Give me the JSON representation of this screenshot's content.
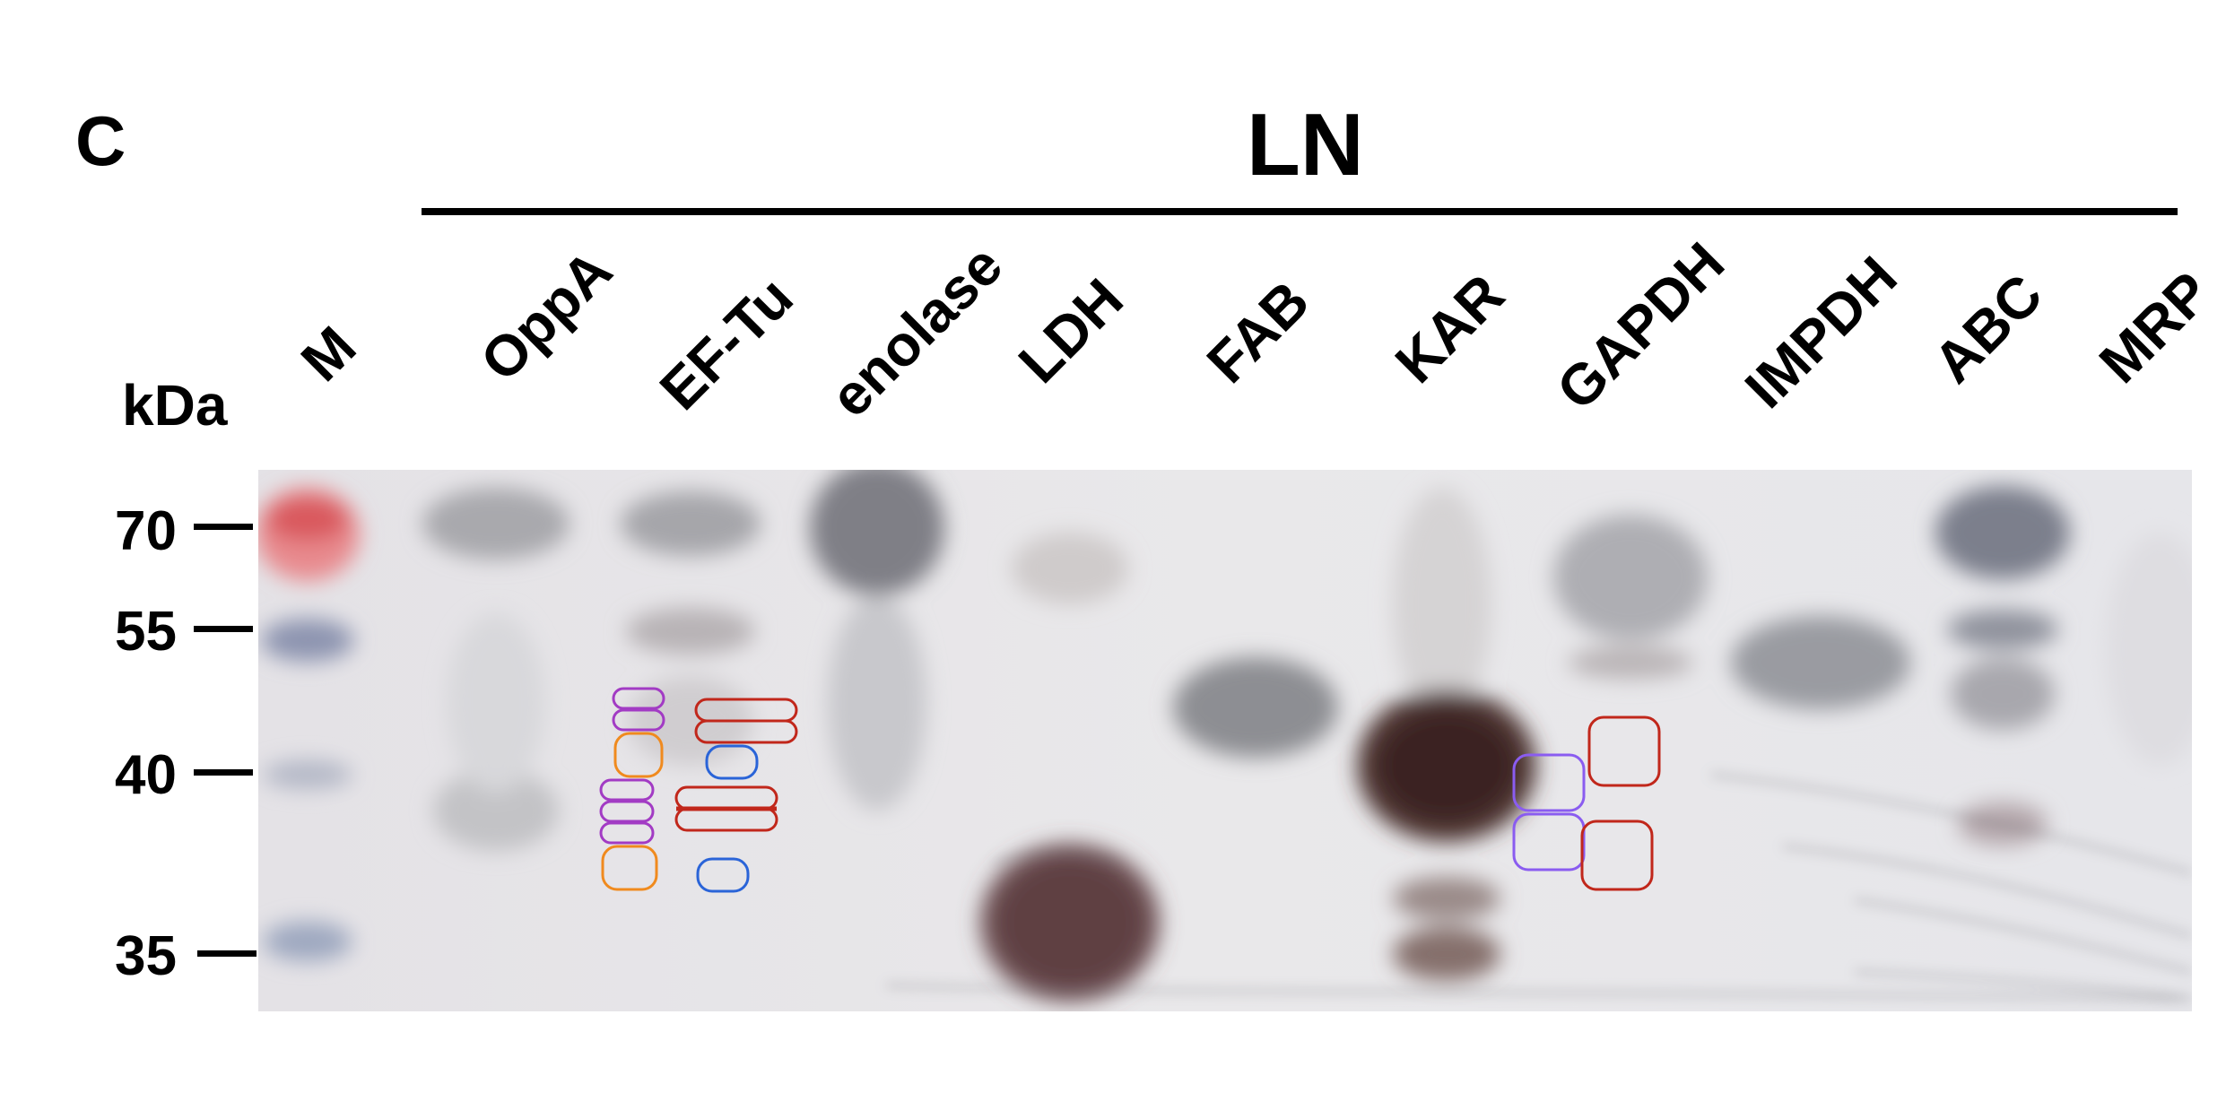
{
  "panel_label": "C",
  "group_label": "LN",
  "unit_label": "kDa",
  "lanes": [
    "M",
    "OppA",
    "EF-Tu",
    "enolase",
    "LDH",
    "FAB",
    "KAR",
    "GAPDH",
    "IMPDH",
    "ABC",
    "MRP"
  ],
  "markers": [
    "70",
    "55",
    "40",
    "35"
  ],
  "colors": {
    "annotation_purple": "#a23bc4",
    "annotation_orange": "#f08a1e",
    "annotation_red": "#c1271b",
    "annotation_blue": "#2a64d8",
    "annotation_violet": "#8a5cf0",
    "gel_background": "#e7e6ea"
  }
}
